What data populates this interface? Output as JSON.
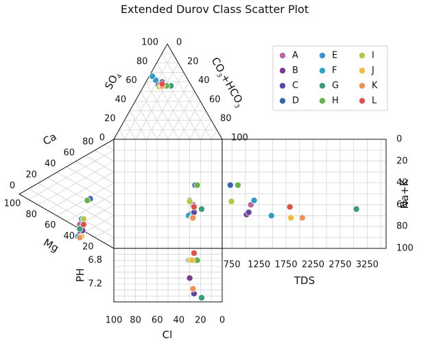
{
  "chart_data": {
    "type": "scatter",
    "title": "Extended Durov Class Scatter Plot",
    "labels": {
      "so4": "SO",
      "so4_sub": "4",
      "co3": "CO",
      "co3_sub1": "3",
      "co3_mid": "+HCO",
      "co3_sub2": "3",
      "ca": "Ca",
      "mg": "Mg",
      "nak": "Na+K",
      "cl": "Cl",
      "tds": "TDS",
      "ph": "PH"
    },
    "ticks": {
      "tri_left": [
        "100",
        "80",
        "60",
        "40",
        "20",
        "0"
      ],
      "tri_right": [
        "0",
        "20",
        "40",
        "60",
        "80",
        "100"
      ],
      "left_top": [
        "80",
        "60",
        "40",
        "20",
        "0"
      ],
      "left_bottom": [
        "100",
        "80",
        "60",
        "40",
        "20"
      ],
      "cl": [
        "100",
        "80",
        "60",
        "40",
        "20",
        "0"
      ],
      "nak": [
        "0",
        "20",
        "40",
        "60",
        "80",
        "100"
      ],
      "tds": [
        "750",
        "1250",
        "1750",
        "2250",
        "2750",
        "3250"
      ],
      "ph": [
        "6.8",
        "7.2"
      ]
    },
    "tds_range": [
      570,
      3600
    ],
    "ph_range": [
      6.6,
      7.5
    ],
    "legend_position": "top-right",
    "series": [
      {
        "name": "A",
        "color": "#b565a7",
        "cl": 27,
        "so4": 55,
        "mg": 36,
        "ca": 42,
        "nak": 60,
        "tds": 1100,
        "ph": 6.8
      },
      {
        "name": "B",
        "color": "#7b3b8c",
        "cl": 30,
        "so4": 57,
        "mg": 36,
        "ca": 40,
        "nak": 69,
        "tds": 1020,
        "ph": 7.1
      },
      {
        "name": "C",
        "color": "#5d4a9c",
        "cl": 26,
        "so4": 58,
        "mg": 33,
        "ca": 44,
        "nak": 67,
        "tds": 1060,
        "ph": 7.36
      },
      {
        "name": "D",
        "color": "#3a64ad",
        "cl": 25,
        "so4": 60,
        "mg": 25,
        "ca": 60,
        "nak": 42,
        "tds": 720,
        "ph": 6.8
      },
      {
        "name": "E",
        "color": "#3597c7",
        "cl": 30,
        "so4": 62,
        "mg": 34,
        "ca": 46,
        "nak": 56,
        "tds": 1160,
        "ph": 6.8
      },
      {
        "name": "F",
        "color": "#2fa0c1",
        "cl": 31,
        "so4": 66,
        "mg": 38,
        "ca": 35,
        "nak": 70,
        "tds": 1480,
        "ph": 6.8
      },
      {
        "name": "G",
        "color": "#3e9a7c",
        "cl": 19,
        "so4": 56,
        "mg": 36,
        "ca": 44,
        "nak": 64,
        "tds": 3050,
        "ph": 7.43
      },
      {
        "name": "H",
        "color": "#6ab04c",
        "cl": 23,
        "so4": 56,
        "mg": 28,
        "ca": 59,
        "nak": 42,
        "tds": 860,
        "ph": 6.8
      },
      {
        "name": "I",
        "color": "#b7c44a",
        "cl": 30,
        "so4": 55,
        "mg": 32,
        "ca": 50,
        "nak": 57,
        "tds": 740,
        "ph": 6.8
      },
      {
        "name": "J",
        "color": "#f0b944",
        "cl": 28,
        "so4": 55,
        "mg": 34,
        "ca": 45,
        "nak": 72,
        "tds": 1840,
        "ph": 6.8
      },
      {
        "name": "K",
        "color": "#ea935a",
        "cl": 27,
        "so4": 56,
        "mg": 36,
        "ca": 40,
        "nak": 72,
        "tds": 2050,
        "ph": 7.28
      },
      {
        "name": "L",
        "color": "#d9534f",
        "cl": 26,
        "so4": 58,
        "mg": 32,
        "ca": 46,
        "nak": 62,
        "tds": 1820,
        "ph": 6.68
      }
    ]
  }
}
